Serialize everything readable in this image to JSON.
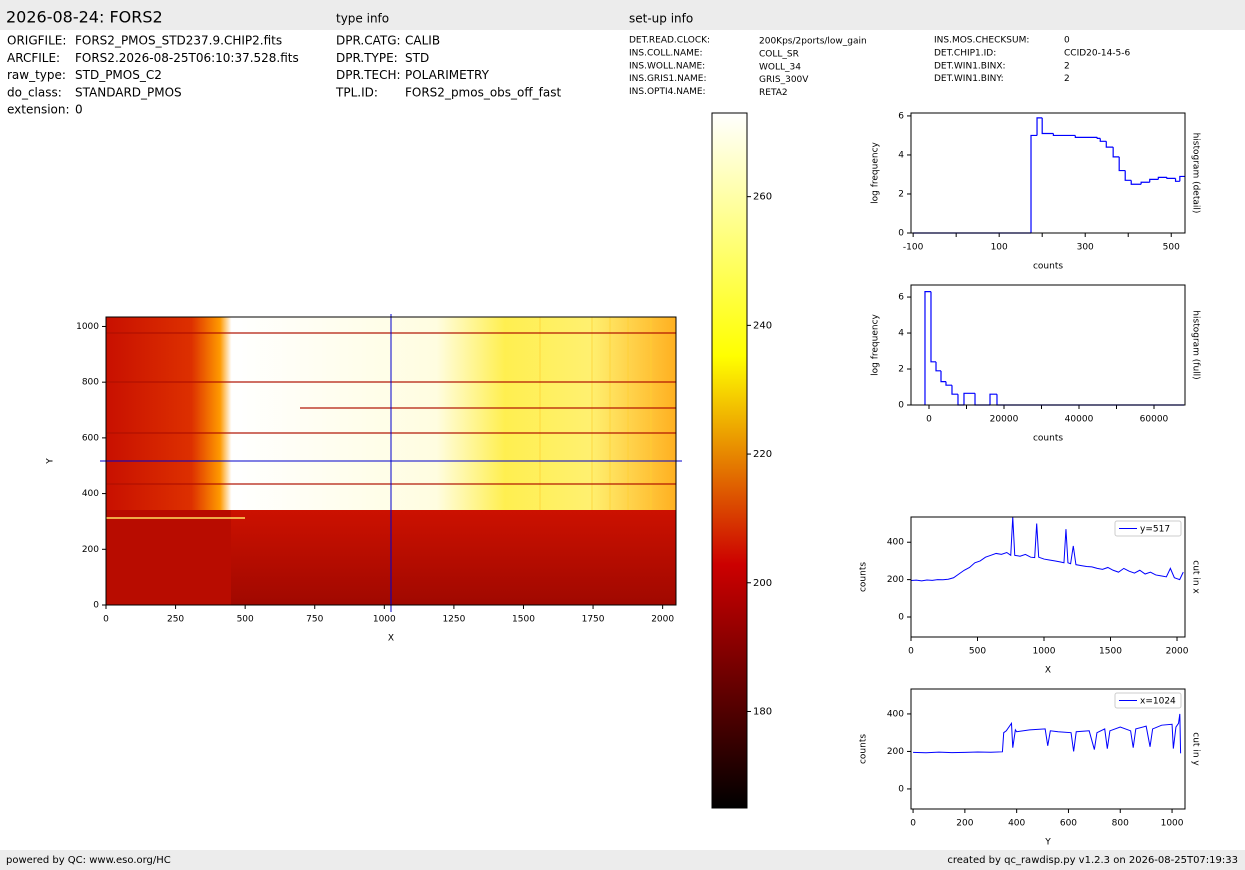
{
  "header": {
    "title": "2026-08-24: FORS2",
    "type_info_title": "type info",
    "setup_info_title": "set-up info"
  },
  "file_info": {
    "keys": [
      "ORIGFILE:",
      "ARCFILE:",
      "raw_type:",
      "do_class:",
      "extension:"
    ],
    "values": [
      "FORS2_PMOS_STD237.9.CHIP2.fits",
      "FORS2.2026-08-25T06:10:37.528.fits",
      "STD_PMOS_C2",
      "STANDARD_PMOS",
      "0"
    ]
  },
  "type_info": {
    "keys": [
      "DPR.CATG:",
      "DPR.TYPE:",
      "DPR.TECH:",
      "TPL.ID:"
    ],
    "values": [
      "CALIB",
      "STD",
      "POLARIMETRY",
      "FORS2_pmos_obs_off_fast"
    ]
  },
  "setup_info": {
    "keys": [
      "DET.READ.CLOCK:",
      "INS.COLL.NAME:",
      "INS.WOLL.NAME:",
      "INS.GRIS1.NAME:",
      "INS.OPTI4.NAME:"
    ],
    "values": [
      "200Kps/2ports/low_gain",
      "COLL_SR",
      "WOLL_34",
      "GRIS_300V",
      "RETA2"
    ]
  },
  "setup_info_2": {
    "keys": [
      "INS.MOS.CHECKSUM:",
      "DET.CHIP1.ID:",
      "DET.WIN1.BINX:",
      "DET.WIN1.BINY:"
    ],
    "values": [
      "0",
      "CCID20-14-5-6",
      "2",
      "2"
    ]
  },
  "footer": {
    "left": "powered by QC: www.eso.org/HC",
    "right": "created by qc_rawdisp.py v1.2.3 on 2026-08-25T07:19:33"
  },
  "chart_data": [
    {
      "type": "image",
      "xlabel": "X",
      "ylabel": "Y",
      "xlim": [
        0,
        2048
      ],
      "ylim": [
        0,
        1034
      ],
      "xticks": [
        0,
        250,
        500,
        750,
        1000,
        1250,
        1500,
        1750,
        2000
      ],
      "yticks": [
        0,
        200,
        400,
        600,
        800,
        1000
      ],
      "crosshair_x": 1024,
      "crosshair_y": 517,
      "crosshair_color": "#0000cc"
    },
    {
      "type": "colorbar",
      "ylim": [
        165,
        273
      ],
      "yticks": [
        180,
        200,
        220,
        240,
        260
      ]
    },
    {
      "type": "histogram",
      "xlabel": "counts",
      "ylabel": "log frequency",
      "side_label": "histogram (detail)",
      "xlim": [
        -105,
        532
      ],
      "xticks": [
        -100,
        100,
        300,
        500
      ],
      "xminorticks": [
        0,
        200,
        400
      ],
      "ylim": [
        0,
        6.15
      ],
      "yticks": [
        0,
        2,
        4,
        6
      ],
      "color": "#0000ff",
      "bins": [
        -100,
        174,
        188,
        200,
        226,
        277,
        328,
        335,
        349,
        365,
        379,
        393,
        407,
        430,
        450,
        470,
        490,
        510,
        520,
        532
      ],
      "counts": [
        0,
        5.0,
        5.9,
        5.1,
        5.0,
        4.9,
        4.85,
        4.7,
        4.4,
        3.9,
        3.2,
        2.7,
        2.5,
        2.6,
        2.75,
        2.85,
        2.8,
        2.65,
        2.9
      ]
    },
    {
      "type": "histogram",
      "xlabel": "counts",
      "ylabel": "log frequency",
      "side_label": "histogram (full)",
      "xlim": [
        -4800,
        68270
      ],
      "xticks": [
        0,
        20000,
        40000,
        60000
      ],
      "xminorticks": [
        10000,
        30000,
        50000
      ],
      "ylim": [
        0,
        6.67
      ],
      "yticks": [
        0,
        2,
        4,
        6
      ],
      "color": "#0000ff",
      "bins": [
        -1070,
        530,
        1870,
        3200,
        4530,
        6130,
        7730,
        9330,
        12270,
        16270,
        18130,
        68000
      ],
      "counts": [
        6.3,
        2.4,
        1.9,
        1.3,
        1.1,
        0.6,
        0,
        0.65,
        0,
        0.6,
        0
      ]
    },
    {
      "type": "line",
      "xlabel": "X",
      "ylabel": "counts",
      "side_label": "cut in x",
      "xlim": [
        0,
        2060
      ],
      "xticks": [
        0,
        500,
        1000,
        1500,
        2000
      ],
      "ylim": [
        -107,
        535
      ],
      "yticks": [
        0,
        200,
        400
      ],
      "x": [
        0,
        40,
        80,
        120,
        160,
        200,
        240,
        280,
        320,
        360,
        400,
        440,
        480,
        520,
        560,
        600,
        640,
        680,
        720,
        750,
        765,
        780,
        820,
        860,
        900,
        930,
        945,
        960,
        1000,
        1040,
        1080,
        1120,
        1150,
        1165,
        1180,
        1200,
        1220,
        1240,
        1280,
        1320,
        1360,
        1400,
        1440,
        1480,
        1520,
        1560,
        1600,
        1640,
        1680,
        1720,
        1760,
        1800,
        1840,
        1880,
        1920,
        1950,
        1980,
        2000,
        2020,
        2047
      ],
      "series": [
        {
          "name": "y=517",
          "color": "#0000ff",
          "values": [
            195,
            197,
            193,
            198,
            196,
            200,
            199,
            202,
            210,
            230,
            250,
            265,
            290,
            300,
            320,
            330,
            340,
            335,
            345,
            330,
            535,
            330,
            325,
            335,
            320,
            318,
            500,
            320,
            310,
            305,
            300,
            295,
            290,
            470,
            290,
            285,
            380,
            280,
            275,
            270,
            268,
            260,
            255,
            265,
            250,
            240,
            260,
            245,
            235,
            250,
            230,
            240,
            225,
            220,
            215,
            260,
            210,
            205,
            200,
            240
          ]
        }
      ]
    },
    {
      "type": "line",
      "xlabel": "Y",
      "ylabel": "counts",
      "side_label": "cut in y",
      "xlim": [
        -8,
        1050
      ],
      "xticks": [
        0,
        200,
        400,
        600,
        800,
        1000
      ],
      "ylim": [
        -107,
        533
      ],
      "yticks": [
        0,
        200,
        400
      ],
      "x": [
        0,
        50,
        100,
        150,
        200,
        250,
        300,
        345,
        350,
        360,
        380,
        385,
        395,
        400,
        450,
        510,
        520,
        530,
        560,
        610,
        620,
        630,
        680,
        700,
        710,
        740,
        750,
        760,
        800,
        840,
        850,
        860,
        900,
        915,
        925,
        960,
        1000,
        1005,
        1015,
        1025,
        1030,
        1033
      ],
      "series": [
        {
          "name": "x=1024",
          "color": "#0000ff",
          "values": [
            195,
            193,
            196,
            194,
            195,
            197,
            196,
            198,
            300,
            310,
            350,
            220,
            315,
            305,
            315,
            320,
            230,
            310,
            305,
            300,
            200,
            305,
            310,
            210,
            300,
            320,
            215,
            310,
            330,
            310,
            220,
            320,
            335,
            225,
            320,
            340,
            345,
            215,
            330,
            350,
            400,
            190
          ]
        }
      ]
    }
  ]
}
